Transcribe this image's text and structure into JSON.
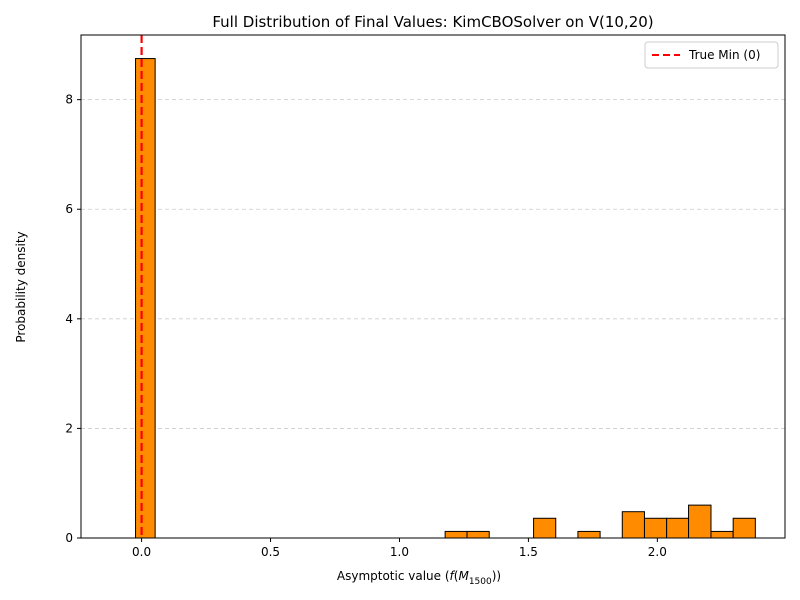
{
  "chart_data": {
    "type": "bar",
    "title": "Full Distribution of Final Values: KimCBOSolver on V(10,20)",
    "xlabel_prefix": "Asymptotic value (",
    "xlabel_f": "f",
    "xlabel_open": "(",
    "xlabel_M": "M",
    "xlabel_sub": "1500",
    "xlabel_suffix": "))",
    "ylabel": "Probability density",
    "xlim": [
      -0.235,
      2.495
    ],
    "ylim": [
      0,
      9.18
    ],
    "xticks": [
      0.0,
      0.5,
      1.0,
      1.5,
      2.0
    ],
    "xtick_labels": [
      "0.0",
      "0.5",
      "1.0",
      "1.5",
      "2.0"
    ],
    "yticks": [
      0,
      2,
      4,
      6,
      8
    ],
    "ytick_labels": [
      "0",
      "2",
      "4",
      "6",
      "8"
    ],
    "grid": "y-dashed",
    "bar_color": "#ff8c00",
    "bar_edge_color": "#000000",
    "bars": [
      {
        "x0": -0.11,
        "x1": -0.0235,
        "value": 0.0
      },
      {
        "x0": -0.0235,
        "x1": 0.0525,
        "value": 8.75
      },
      {
        "x0": 0.0525,
        "x1": 0.14,
        "value": 0.0
      },
      {
        "x0": 0.14,
        "x1": 0.22,
        "value": 0.0
      },
      {
        "x0": 0.22,
        "x1": 0.3,
        "value": 0.0
      },
      {
        "x0": 0.3,
        "x1": 0.4,
        "value": 0.0
      },
      {
        "x0": 0.4,
        "x1": 0.5,
        "value": 0.0
      },
      {
        "x0": 0.5,
        "x1": 0.6,
        "value": 0.0
      },
      {
        "x0": 0.6,
        "x1": 0.7,
        "value": 0.0
      },
      {
        "x0": 0.7,
        "x1": 0.8,
        "value": 0.0
      },
      {
        "x0": 0.8,
        "x1": 0.9,
        "value": 0.0
      },
      {
        "x0": 0.9,
        "x1": 1.0,
        "value": 0.0
      },
      {
        "x0": 1.0,
        "x1": 1.09,
        "value": 0.0
      },
      {
        "x0": 1.09,
        "x1": 1.177,
        "value": 0.0
      },
      {
        "x0": 1.177,
        "x1": 1.262,
        "value": 0.12
      },
      {
        "x0": 1.262,
        "x1": 1.348,
        "value": 0.12
      },
      {
        "x0": 1.348,
        "x1": 1.435,
        "value": 0.0
      },
      {
        "x0": 1.435,
        "x1": 1.52,
        "value": 0.0
      },
      {
        "x0": 1.52,
        "x1": 1.606,
        "value": 0.36
      },
      {
        "x0": 1.606,
        "x1": 1.692,
        "value": 0.0
      },
      {
        "x0": 1.692,
        "x1": 1.778,
        "value": 0.12
      },
      {
        "x0": 1.778,
        "x1": 1.864,
        "value": 0.0
      },
      {
        "x0": 1.864,
        "x1": 1.95,
        "value": 0.48
      },
      {
        "x0": 1.95,
        "x1": 2.036,
        "value": 0.36
      },
      {
        "x0": 2.036,
        "x1": 2.121,
        "value": 0.36
      },
      {
        "x0": 2.121,
        "x1": 2.208,
        "value": 0.6
      },
      {
        "x0": 2.208,
        "x1": 2.294,
        "value": 0.12
      },
      {
        "x0": 2.294,
        "x1": 2.38,
        "value": 0.36
      }
    ],
    "vline": {
      "x": 0,
      "color": "#ff0000",
      "label": "True Min (0)"
    },
    "legend_position": "upper right"
  }
}
